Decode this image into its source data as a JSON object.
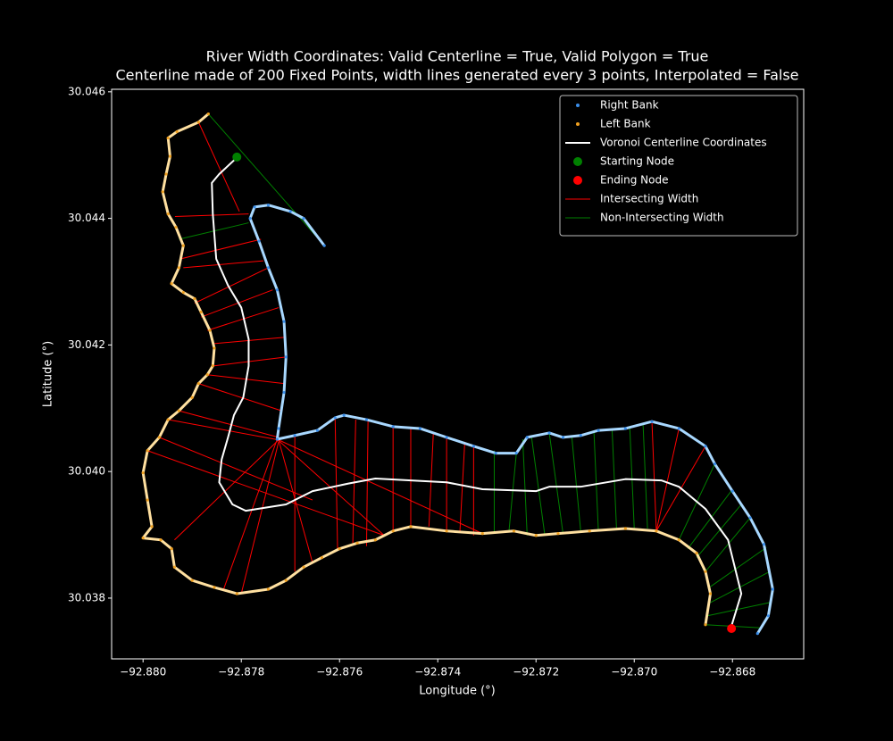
{
  "chart_data": {
    "type": "line",
    "title": "River Width Coordinates: Valid Centerline = True, Valid Polygon = True",
    "subtitle": "Centerline made of 200 Fixed Points, width lines generated every 3 points, Interpolated = False",
    "x_label": "Longitude (°)",
    "y_label": "Latitude (°)",
    "xlim": [
      -92.88064,
      -92.86655
    ],
    "ylim": [
      30.03704,
      30.04604
    ],
    "xticks": [
      {
        "value": -92.88,
        "label": "−92.880"
      },
      {
        "value": -92.878,
        "label": "−92.878"
      },
      {
        "value": -92.876,
        "label": "−92.876"
      },
      {
        "value": -92.874,
        "label": "−92.874"
      },
      {
        "value": -92.872,
        "label": "−92.872"
      },
      {
        "value": -92.87,
        "label": "−92.870"
      },
      {
        "value": -92.868,
        "label": "−92.868"
      }
    ],
    "yticks": [
      30.038,
      {
        "value": 30.04,
        "label": "30.040"
      },
      30.042,
      30.044,
      30.046
    ],
    "legend": "upper right",
    "series": [
      {
        "name": "Right Bank",
        "kind": "points",
        "color": "#3b8eea",
        "edgecolor": "#a8d8ff",
        "x": [
          -92.87631,
          -92.87673,
          -92.877,
          -92.87745,
          -92.87773,
          -92.87782,
          -92.87764,
          -92.87745,
          -92.87727,
          -92.87713,
          -92.87709,
          -92.87713,
          -92.87724,
          -92.87727,
          -92.87691,
          -92.87645,
          -92.87609,
          -92.87591,
          -92.87545,
          -92.87491,
          -92.87436,
          -92.87382,
          -92.87327,
          -92.87282,
          -92.8724,
          -92.87218,
          -92.87173,
          -92.87145,
          -92.87109,
          -92.87073,
          -92.87018,
          -92.86964,
          -92.86909,
          -92.86855,
          -92.86836,
          -92.868,
          -92.86764,
          -92.86736,
          -92.86718,
          -92.86727,
          -92.86749
        ],
        "y": [
          30.04357,
          30.044,
          30.04411,
          30.04421,
          30.04418,
          30.044,
          30.04364,
          30.04322,
          30.04287,
          30.04237,
          30.04181,
          30.04125,
          30.04068,
          30.04051,
          30.04057,
          30.04065,
          30.04085,
          30.04089,
          30.04082,
          30.04071,
          30.04068,
          30.04054,
          30.0404,
          30.04029,
          30.04029,
          30.04054,
          30.04061,
          30.04054,
          30.04057,
          30.04065,
          30.04068,
          30.04079,
          30.04068,
          30.0404,
          30.04012,
          30.03969,
          30.03927,
          30.03885,
          30.03814,
          30.03772,
          30.03744
        ]
      },
      {
        "name": "Left Bank",
        "kind": "points",
        "color": "#f0a020",
        "edgecolor": "#ffe0a0",
        "x": [
          -92.87867,
          -92.87887,
          -92.87931,
          -92.87949,
          -92.87945,
          -92.87953,
          -92.8796,
          -92.87949,
          -92.87933,
          -92.87918,
          -92.87927,
          -92.87942,
          -92.87918,
          -92.87895,
          -92.87882,
          -92.87864,
          -92.87855,
          -92.87858,
          -92.87869,
          -92.87887,
          -92.879,
          -92.87927,
          -92.87949,
          -92.87967,
          -92.87991,
          -92.88,
          -92.87991,
          -92.87982,
          -92.88,
          -92.87964,
          -92.87942,
          -92.87936,
          -92.879,
          -92.87855,
          -92.87809,
          -92.87745,
          -92.87709,
          -92.87673,
          -92.87636,
          -92.876,
          -92.87564,
          -92.87527,
          -92.87491,
          -92.87455,
          -92.87382,
          -92.87309,
          -92.87245,
          -92.872,
          -92.87155,
          -92.87091,
          -92.87018,
          -92.86955,
          -92.86909,
          -92.86873,
          -92.86855,
          -92.86845,
          -92.86855
        ],
        "y": [
          30.04565,
          30.04552,
          30.04537,
          30.04527,
          30.04498,
          30.0447,
          30.04442,
          30.04407,
          30.04386,
          30.04357,
          30.04322,
          30.04297,
          30.04283,
          30.04273,
          30.04252,
          30.04223,
          30.04195,
          30.04167,
          30.04153,
          30.04139,
          30.04117,
          30.04096,
          30.04082,
          30.04054,
          30.04033,
          30.03998,
          30.03955,
          30.03913,
          30.03895,
          30.03892,
          30.03878,
          30.03849,
          30.03828,
          30.03817,
          30.03807,
          30.03814,
          30.03828,
          30.03849,
          30.03864,
          30.03878,
          30.03887,
          30.03892,
          30.03906,
          30.03913,
          30.03906,
          30.03902,
          30.03906,
          30.03899,
          30.03902,
          30.03906,
          30.0391,
          30.03906,
          30.03892,
          30.03871,
          30.03842,
          30.03807,
          30.03758
        ]
      },
      {
        "name": "Voronoi Centerline Coordinates",
        "kind": "line",
        "color": "#ffffff",
        "x": [
          -92.87809,
          -92.87845,
          -92.8786,
          -92.87858,
          -92.87851,
          -92.87827,
          -92.878,
          -92.87785,
          -92.87785,
          -92.87796,
          -92.87815,
          -92.87827,
          -92.8784,
          -92.87845,
          -92.87818,
          -92.87791,
          -92.87709,
          -92.87655,
          -92.87582,
          -92.87527,
          -92.87455,
          -92.87382,
          -92.87309,
          -92.872,
          -92.87173,
          -92.87109,
          -92.87018,
          -92.86945,
          -92.86909,
          -92.86855,
          -92.86809,
          -92.86782,
          -92.86804
        ],
        "y": [
          30.04496,
          30.0447,
          30.04456,
          30.04407,
          30.04336,
          30.04294,
          30.04259,
          30.04209,
          30.04167,
          30.04117,
          30.04089,
          30.04054,
          30.04019,
          30.03983,
          30.03948,
          30.03938,
          30.03948,
          30.03969,
          30.03981,
          30.03989,
          30.03986,
          30.03983,
          30.03972,
          30.03969,
          30.03976,
          30.03976,
          30.03988,
          30.03986,
          30.03976,
          30.03941,
          30.03892,
          30.03807,
          30.03751
        ]
      },
      {
        "name": "Starting Node",
        "kind": "node",
        "color": "#008000",
        "x": [
          -92.87809
        ],
        "y": [
          30.04497
        ]
      },
      {
        "name": "Ending Node",
        "kind": "node",
        "color": "#ff0000",
        "x": [
          -92.86802
        ],
        "y": [
          30.03752
        ]
      },
      {
        "name": "Intersecting Width",
        "kind": "segments",
        "color": "#ff0000",
        "segments": [
          [
            -92.87887,
            30.04552,
            -92.87804,
            30.04411
          ],
          [
            -92.87935,
            30.04403,
            -92.87785,
            30.04407
          ],
          [
            -92.87924,
            30.04336,
            -92.8776,
            30.04367
          ],
          [
            -92.87918,
            30.04322,
            -92.87755,
            30.04333
          ],
          [
            -92.87895,
            30.04266,
            -92.87745,
            30.04322
          ],
          [
            -92.87882,
            30.04244,
            -92.87736,
            30.04287
          ],
          [
            -92.87869,
            30.04223,
            -92.87724,
            30.04259
          ],
          [
            -92.87858,
            30.04202,
            -92.87713,
            30.04212
          ],
          [
            -92.87855,
            30.04167,
            -92.87709,
            30.04181
          ],
          [
            -92.87869,
            30.04153,
            -92.87713,
            30.04139
          ],
          [
            -92.87887,
            30.04139,
            -92.87718,
            30.04096
          ],
          [
            -92.87927,
            30.04096,
            -92.87724,
            30.04054
          ],
          [
            -92.87949,
            30.04082,
            -92.87724,
            30.0405
          ],
          [
            -92.87967,
            30.04054,
            -92.87655,
            30.03955
          ],
          [
            -92.87991,
            30.04033,
            -92.87509,
            30.03899
          ],
          [
            -92.87936,
            30.03892,
            -92.87724,
            30.0405
          ],
          [
            -92.87836,
            30.03814,
            -92.87727,
            30.04051
          ],
          [
            -92.878,
            30.03807,
            -92.87724,
            30.04047
          ],
          [
            -92.87691,
            30.03842,
            -92.87691,
            30.04057
          ],
          [
            -92.87655,
            30.03856,
            -92.87724,
            30.0405
          ],
          [
            -92.87604,
            30.03878,
            -92.87609,
            30.04085
          ],
          [
            -92.87573,
            30.03887,
            -92.87567,
            30.04082
          ],
          [
            -92.87545,
            30.03882,
            -92.87542,
            30.04079
          ],
          [
            -92.87509,
            30.03899,
            -92.87727,
            30.04051
          ],
          [
            -92.87491,
            30.03906,
            -92.87491,
            30.04071
          ],
          [
            -92.87455,
            30.03913,
            -92.87455,
            30.04068
          ],
          [
            -92.87418,
            30.03913,
            -92.87409,
            30.04061
          ],
          [
            -92.87382,
            30.03906,
            -92.87382,
            30.04054
          ],
          [
            -92.87355,
            30.03904,
            -92.87345,
            30.04047
          ],
          [
            -92.87327,
            30.03899,
            -92.87327,
            30.0404
          ],
          [
            -92.87309,
            30.03902,
            -92.87727,
            30.04051
          ],
          [
            -92.86955,
            30.03906,
            -92.86964,
            30.04079
          ],
          [
            -92.86955,
            30.03906,
            -92.86909,
            30.04068
          ],
          [
            -92.86955,
            30.03906,
            -92.86855,
            30.0404
          ]
        ]
      },
      {
        "name": "Non-Intersecting Width",
        "kind": "segments",
        "color": "#008000",
        "segments": [
          [
            -92.87867,
            30.04565,
            -92.87631,
            30.04357
          ],
          [
            -92.87927,
            30.04367,
            -92.87785,
            30.04393
          ],
          [
            -92.87285,
            30.03902,
            -92.87285,
            30.04033
          ],
          [
            -92.87255,
            30.03906,
            -92.8724,
            30.04029
          ],
          [
            -92.87218,
            30.03899,
            -92.87227,
            30.04051
          ],
          [
            -92.87182,
            30.03899,
            -92.87209,
            30.04054
          ],
          [
            -92.87145,
            30.03902,
            -92.87173,
            30.04061
          ],
          [
            -92.87109,
            30.03906,
            -92.87127,
            30.04054
          ],
          [
            -92.87073,
            30.03906,
            -92.87082,
            30.04062
          ],
          [
            -92.87036,
            30.03909,
            -92.87045,
            30.04065
          ],
          [
            -92.87,
            30.0391,
            -92.87009,
            30.04068
          ],
          [
            -92.86973,
            30.0391,
            -92.86982,
            30.04074
          ],
          [
            -92.86909,
            30.03892,
            -92.86836,
            30.04012
          ],
          [
            -92.86891,
            30.03878,
            -92.868,
            30.03972
          ],
          [
            -92.86873,
            30.03864,
            -92.86782,
            30.03948
          ],
          [
            -92.86855,
            30.03842,
            -92.86764,
            30.03927
          ],
          [
            -92.86845,
            30.03818,
            -92.86731,
            30.0388
          ],
          [
            -92.86845,
            30.03793,
            -92.86724,
            30.03842
          ],
          [
            -92.86851,
            30.03772,
            -92.86724,
            30.03793
          ],
          [
            -92.86855,
            30.03758,
            -92.86742,
            30.03753
          ]
        ]
      }
    ]
  }
}
